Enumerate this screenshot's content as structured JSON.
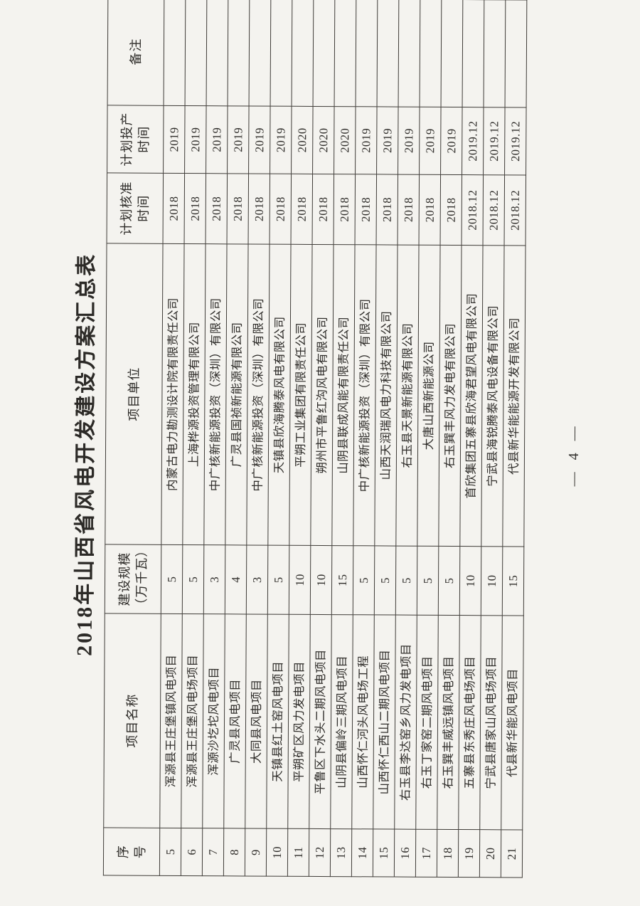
{
  "title": "2018年山西省风电开发建设方案汇总表",
  "page_number": "— 4 —",
  "table": {
    "headers": [
      {
        "key": "no",
        "label": "序\n号"
      },
      {
        "key": "name",
        "label": "项目名称"
      },
      {
        "key": "scale",
        "label": "建设规模\n（万千瓦）"
      },
      {
        "key": "unit",
        "label": "项目单位"
      },
      {
        "key": "approve",
        "label": "计划核准\n时间"
      },
      {
        "key": "prod",
        "label": "计划投产\n时间"
      },
      {
        "key": "remark",
        "label": "备注"
      }
    ],
    "rows": [
      {
        "no": "5",
        "name": "浑源县王庄堡镇风电项目",
        "scale": "5",
        "unit": "内蒙古电力勘测设计院有限责任公司",
        "approve": "2018",
        "prod": "2019",
        "remark": ""
      },
      {
        "no": "6",
        "name": "浑源县王庄堡风电场项目",
        "scale": "5",
        "unit": "上海桦源投资管理有限公司",
        "approve": "2018",
        "prod": "2019",
        "remark": ""
      },
      {
        "no": "7",
        "name": "浑源沙圪坨风电项目",
        "scale": "3",
        "unit": "中广核新能源投资（深圳）有限公司",
        "approve": "2018",
        "prod": "2019",
        "remark": ""
      },
      {
        "no": "8",
        "name": "广灵县风电项目",
        "scale": "4",
        "unit": "广灵县国祯新能源有限公司",
        "approve": "2018",
        "prod": "2019",
        "remark": ""
      },
      {
        "no": "9",
        "name": "大同县风电项目",
        "scale": "3",
        "unit": "中广核新能源投资（深圳）有限公司",
        "approve": "2018",
        "prod": "2019",
        "remark": ""
      },
      {
        "no": "10",
        "name": "天镇县红土窑风电项目",
        "scale": "5",
        "unit": "天镇县欣海腾泰风电有限公司",
        "approve": "2018",
        "prod": "2019",
        "remark": ""
      },
      {
        "no": "11",
        "name": "平朔矿区风力发电项目",
        "scale": "10",
        "unit": "平朔工业集团有限责任公司",
        "approve": "2018",
        "prod": "2020",
        "remark": ""
      },
      {
        "no": "12",
        "name": "平鲁区下水头二期风电项目",
        "scale": "10",
        "unit": "朔州市平鲁红沟风电有限公司",
        "approve": "2018",
        "prod": "2020",
        "remark": ""
      },
      {
        "no": "13",
        "name": "山阴县偏岭三期风电项目",
        "scale": "15",
        "unit": "山阴县联成风能有限责任公司",
        "approve": "2018",
        "prod": "2020",
        "remark": ""
      },
      {
        "no": "14",
        "name": "山西怀仁河头风电场工程",
        "scale": "5",
        "unit": "中广核新能源投资（深圳）有限公司",
        "approve": "2018",
        "prod": "2019",
        "remark": ""
      },
      {
        "no": "15",
        "name": "山西怀仁西山二期风电项目",
        "scale": "5",
        "unit": "山西天润瑞风电力科技有限公司",
        "approve": "2018",
        "prod": "2019",
        "remark": ""
      },
      {
        "no": "16",
        "name": "右玉县李达窑乡风力发电项目",
        "scale": "5",
        "unit": "右玉县天景新能源有限公司",
        "approve": "2018",
        "prod": "2019",
        "remark": ""
      },
      {
        "no": "17",
        "name": "右玉丁家窑二期风电项目",
        "scale": "5",
        "unit": "大唐山西新能源公司",
        "approve": "2018",
        "prod": "2019",
        "remark": ""
      },
      {
        "no": "18",
        "name": "右玉巽丰威远镇风电项目",
        "scale": "5",
        "unit": "右玉巽丰风力发电有限公司",
        "approve": "2018",
        "prod": "2019",
        "remark": ""
      },
      {
        "no": "19",
        "name": "五寨县东秀庄风电场项目",
        "scale": "10",
        "unit": "首欣集团五寨县欣海君望风电有限公司",
        "approve": "2018.12",
        "prod": "2019.12",
        "remark": ""
      },
      {
        "no": "20",
        "name": "宁武县唐家山风电场项目",
        "scale": "10",
        "unit": "宁武县海锐腾泰风电设备有限公司",
        "approve": "2018.12",
        "prod": "2019.12",
        "remark": ""
      },
      {
        "no": "21",
        "name": "代县新华能风电项目",
        "scale": "15",
        "unit": "代县新华能能源开发有限公司",
        "approve": "2018.12",
        "prod": "2019.12",
        "remark": ""
      }
    ]
  }
}
